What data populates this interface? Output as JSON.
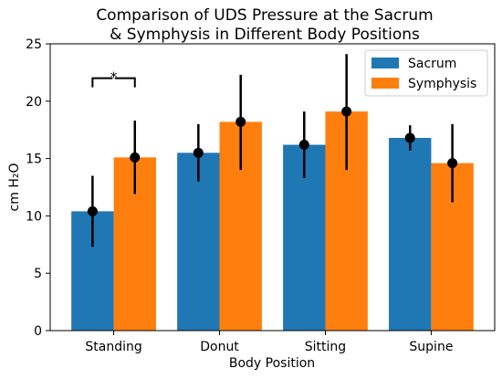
{
  "chart_data": {
    "type": "bar",
    "title_line1": "Comparison of UDS Pressure at the Sacrum",
    "title_line2": "& Symphysis in Different Body Positions",
    "xlabel": "Body Position",
    "ylabel": "cm H₂O",
    "ylim": [
      0,
      25
    ],
    "yticks": [
      "0",
      "5",
      "10",
      "15",
      "20",
      "25"
    ],
    "categories": [
      "Standing",
      "Donut",
      "Sitting",
      "Supine"
    ],
    "series": [
      {
        "name": "Sacrum",
        "color": "#1f77b4",
        "values": [
          10.4,
          15.5,
          16.2,
          16.8
        ],
        "markers": [
          10.4,
          15.5,
          16.2,
          16.8
        ],
        "err_low": [
          7.3,
          13.0,
          13.3,
          15.7
        ],
        "err_high": [
          13.5,
          18.0,
          19.1,
          17.9
        ]
      },
      {
        "name": "Symphysis",
        "color": "#ff7f0e",
        "values": [
          15.1,
          18.2,
          19.1,
          14.6
        ],
        "markers": [
          15.1,
          18.2,
          19.1,
          14.6
        ],
        "err_low": [
          11.9,
          14.0,
          14.0,
          11.2
        ],
        "err_high": [
          18.3,
          22.3,
          24.1,
          18.0
        ]
      }
    ],
    "annotation": {
      "text": "*",
      "category": "Standing",
      "y": 22
    },
    "legend_position": "top-right",
    "grid": false
  }
}
